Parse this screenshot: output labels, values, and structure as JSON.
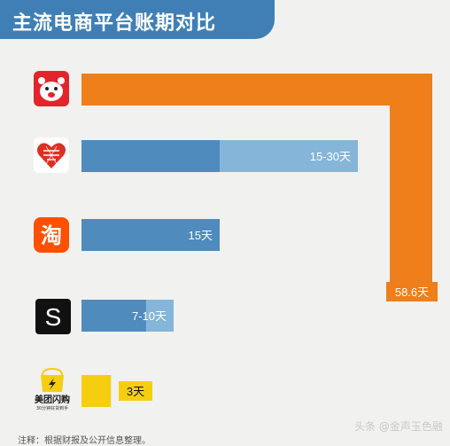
{
  "title": "主流电商平台账期对比",
  "footnote": "注释：根据财报及公开信息整理。",
  "watermark": "头条 @金声玉色融",
  "colors": {
    "title_bg": "#3f7fb5",
    "jd_orange": "#ef7f1a",
    "bar_dark_blue": "#4f8bbd",
    "bar_light_blue": "#85b5d9",
    "meituan_yellow": "#f5ce10"
  },
  "logos": [
    {
      "name": "jd-logo-icon"
    },
    {
      "name": "pinduoduo-logo-icon"
    },
    {
      "name": "taobao-logo-icon",
      "glyph": "淘"
    },
    {
      "name": "shein-logo-icon",
      "glyph": "S"
    },
    {
      "name": "meituan-shangou-logo-icon",
      "brand": "美团闪购",
      "slogan": "30分钟好货到手"
    }
  ],
  "chart_data": {
    "type": "bar",
    "orientation": "horizontal",
    "unit": "天",
    "title": "主流电商平台账期对比",
    "categories": [
      "京东",
      "拼多多",
      "淘宝",
      "SHEIN",
      "美团闪购"
    ],
    "bars": [
      {
        "min": 58.6,
        "max": 58.6,
        "label": "58.6天",
        "color": "#ef7f1a"
      },
      {
        "min": 15,
        "max": 30,
        "label": "15-30天",
        "color": "#4f8bbd",
        "range_color": "#85b5d9"
      },
      {
        "min": 15,
        "max": 15,
        "label": "15天",
        "color": "#4f8bbd"
      },
      {
        "min": 7,
        "max": 10,
        "label": "7-10天",
        "color": "#4f8bbd",
        "range_color": "#85b5d9"
      },
      {
        "min": 3,
        "max": 3,
        "label": "3天",
        "color": "#f5ce10"
      }
    ]
  }
}
